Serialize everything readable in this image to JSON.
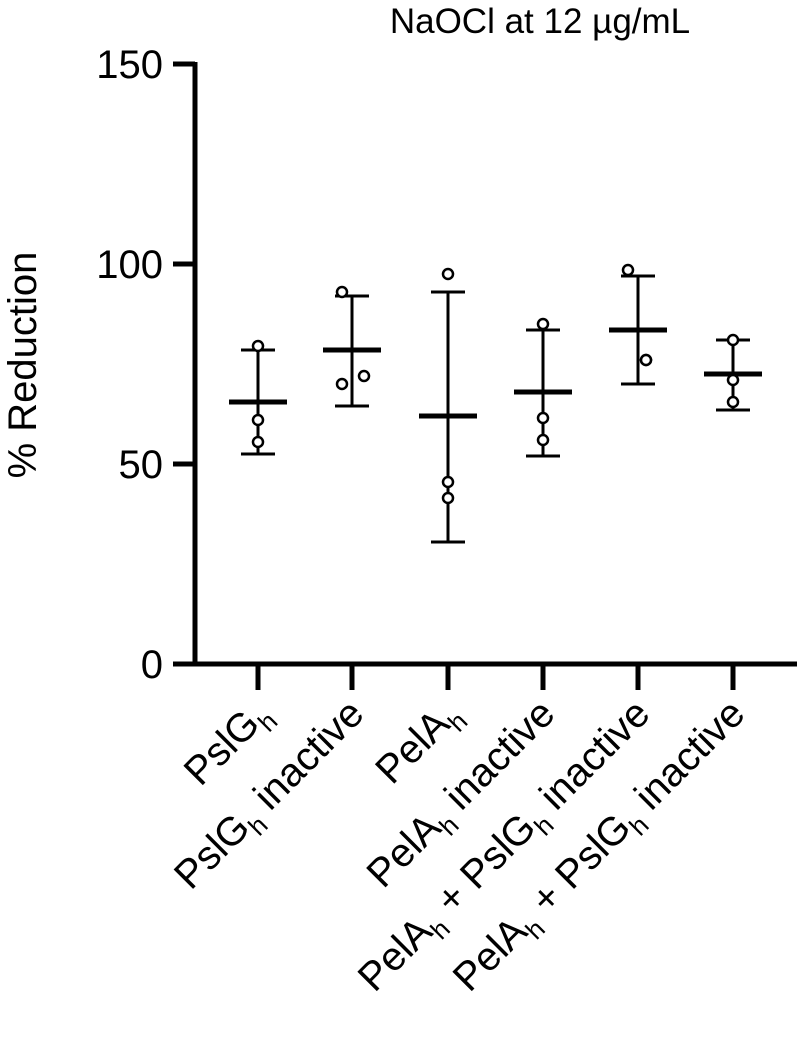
{
  "chart_data": {
    "type": "scatter",
    "title": "NaOCl at 12 µg/mL",
    "ylabel": "% Reduction",
    "ylim": [
      0,
      150
    ],
    "yticks": [
      0,
      50,
      100,
      150
    ],
    "grid": false,
    "categories": [
      {
        "base": "PslG",
        "sub": "h",
        "suffix": "",
        "label": "PslGh"
      },
      {
        "base": "PslG",
        "sub": "h",
        "suffix": " inactive",
        "label": "PslGh inactive"
      },
      {
        "base": "PelA",
        "sub": "h",
        "suffix": "",
        "label": "PelAh"
      },
      {
        "base": "PelA",
        "sub": "h",
        "suffix": " inactive",
        "label": "PelAh inactive"
      },
      {
        "base": "PelA",
        "sub": "h",
        "mid": " + PslG",
        "sub2": "h",
        "suffix": " inactive",
        "label": "PelAh + PslGh inactive"
      },
      {
        "base": "PelA",
        "sub": "h",
        "mid": " + PslG",
        "sub2": "h",
        "suffix": " inactive",
        "label": "PelAh + PslGh inactive"
      }
    ],
    "points": [
      [
        79.5,
        61.0,
        55.5
      ],
      [
        93.0,
        70.0,
        72.0
      ],
      [
        97.5,
        45.5,
        41.5
      ],
      [
        85.0,
        61.5,
        56.0
      ],
      [
        98.5,
        76.0,
        76.0
      ],
      [
        81.0,
        71.0,
        65.5
      ]
    ],
    "mean": [
      65.5,
      78.5,
      62.0,
      68.0,
      83.5,
      72.5
    ],
    "error_upper": [
      78.5,
      92.0,
      93.0,
      83.5,
      97.0,
      81.0
    ],
    "error_lower": [
      52.5,
      64.5,
      30.5,
      52.0,
      70.0,
      63.5
    ]
  }
}
